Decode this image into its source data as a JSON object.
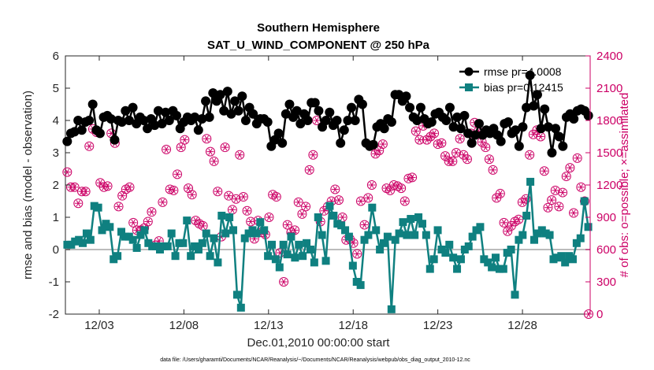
{
  "chart_data": {
    "type": "line",
    "title": "Southern Hemisphere",
    "subtitle": "SAT_U_WIND_COMPONENT @ 250 hPa",
    "xlabel": "Dec.01,2010 00:00:00 start",
    "ylabel_left": "rmse and bias (model - observation)",
    "ylabel_right": "# of obs: o=possible; ×=assimilated",
    "footer": "data file: /Users/gharamti/Documents/NCAR/Reanalysis/~/Documents/NCAR/Reanalysis/webpub/obs_diag_output_2010-12.nc",
    "x_range": [
      1,
      32
    ],
    "x_ticks": [
      3,
      8,
      13,
      18,
      23,
      28
    ],
    "x_tick_labels": [
      "12/03",
      "12/08",
      "12/13",
      "12/18",
      "12/23",
      "12/28"
    ],
    "y_left_range": [
      -2,
      6
    ],
    "y_left_ticks": [
      "-2",
      "-1",
      "0",
      "1",
      "2",
      "3",
      "4",
      "5",
      "6"
    ],
    "y_right_range": [
      0,
      2400
    ],
    "y_right_ticks": [
      "0",
      "300",
      "600",
      "900",
      "1200",
      "1500",
      "1800",
      "2100",
      "2400"
    ],
    "colors": {
      "rmse": "#000000",
      "bias": "#0f8080",
      "obs": "#cc0066",
      "zero_line": "#bbbbbb",
      "right_axis": "#cc0066"
    },
    "series": [
      {
        "name": "rmse",
        "legend": "rmse pr=4.0008",
        "axis": "left",
        "values": [
          3.35,
          3.6,
          3.65,
          4.0,
          3.7,
          3.95,
          4.0,
          4.5,
          3.7,
          3.6,
          4.1,
          4.15,
          4.05,
          3.4,
          4.0,
          3.95,
          4.3,
          4.0,
          4.4,
          3.9,
          4.1,
          4.0,
          3.75,
          4.05,
          3.85,
          4.3,
          3.9,
          4.25,
          4.0,
          4.3,
          4.15,
          3.75,
          3.95,
          4.1,
          4.0,
          4.1,
          3.7,
          4.05,
          4.6,
          4.1,
          4.85,
          4.6,
          4.8,
          4.3,
          4.9,
          4.2,
          4.6,
          4.3,
          4.75,
          4.0,
          4.4,
          4.2,
          3.9,
          4.05,
          4.05,
          3.95,
          3.2,
          3.4,
          3.6,
          3.3,
          4.2,
          4.5,
          4.1,
          4.3,
          3.9,
          4.2,
          4.0,
          4.55,
          4.55,
          4.3,
          3.8,
          4.0,
          4.25,
          3.85,
          4.0,
          3.3,
          3.7,
          4.0,
          4.4,
          4.0,
          4.65,
          4.5,
          3.3,
          3.2,
          3.25,
          3.8,
          3.9,
          3.75,
          4.05,
          3.95,
          4.8,
          4.8,
          4.6,
          4.75,
          4.4,
          4.1,
          4.0,
          4.4,
          4.05,
          3.9,
          3.95,
          4.2,
          4.25,
          4.1,
          4.0,
          4.4,
          3.8,
          4.1,
          3.75,
          4.15,
          3.6,
          3.3,
          3.55,
          3.9,
          3.55,
          3.7,
          3.6,
          3.75,
          3.55,
          3.35,
          3.9,
          3.95,
          3.6,
          3.7,
          3.2,
          3.8,
          4.4,
          5.4,
          4.45,
          4.8,
          3.75,
          4.35,
          3.8,
          3.0,
          3.75,
          3.5,
          3.2,
          4.1,
          4.2,
          4.05,
          4.3,
          4.35,
          4.3,
          4.15
        ]
      },
      {
        "name": "bias",
        "legend": "bias pr=0.12415",
        "axis": "left",
        "values": [
          0.15,
          0.15,
          0.25,
          0.3,
          0.2,
          0.5,
          0.3,
          1.35,
          1.3,
          0.6,
          0.8,
          0.7,
          -0.3,
          -0.2,
          0.55,
          0.4,
          0.4,
          0.3,
          0.05,
          0.45,
          0.6,
          0.2,
          0.1,
          0.1,
          0.0,
          0.1,
          0.1,
          0.5,
          -0.2,
          0.2,
          0.2,
          0.9,
          -0.2,
          0.1,
          0.0,
          0.2,
          0.5,
          -0.2,
          0.35,
          -0.4,
          1.05,
          0.5,
          1.0,
          0.6,
          -1.4,
          -1.8,
          0.35,
          0.5,
          0.6,
          0.5,
          0.85,
          0.6,
          -0.2,
          0.15,
          -0.3,
          -0.55,
          0.15,
          -0.15,
          0.4,
          -0.25,
          0.15,
          -0.2,
          0.2,
          0.0,
          -0.4,
          1.0,
          0.45,
          -0.35,
          1.35,
          1.05,
          0.8,
          0.75,
          0.6,
          0.4,
          -0.5,
          -1.0,
          -1.1,
          0.3,
          0.45,
          1.3,
          0.6,
          0.0,
          0.2,
          0.4,
          -1.85,
          0.3,
          0.5,
          0.85,
          0.45,
          0.95,
          0.45,
          1.0,
          0.8,
          0.45,
          -0.6,
          -0.3,
          0.6,
          0.0,
          -0.1,
          0.15,
          -0.25,
          -0.6,
          -0.3,
          0.0,
          0.1,
          0.4,
          0.6,
          0.7,
          -0.3,
          -0.4,
          -0.55,
          -0.25,
          -0.6,
          -0.6,
          -0.1,
          0.0,
          -1.4,
          0.3,
          0.45,
          1.05,
          2.1,
          0.3,
          0.5,
          0.6,
          0.5,
          0.45,
          -0.3,
          -0.25,
          -0.2,
          -0.4,
          -0.2,
          -0.3,
          0.2,
          0.35,
          1.5,
          0.7
        ]
      },
      {
        "name": "obs_possible",
        "legend": "",
        "axis": "right",
        "values": [
          1320,
          1180,
          1180,
          1030,
          1140,
          1140,
          1560,
          1720,
          1690,
          1220,
          1180,
          1190,
          1680,
          1590,
          1000,
          1100,
          1160,
          1180,
          850,
          780,
          780,
          800,
          860,
          950,
          640,
          680,
          1040,
          1530,
          1160,
          1150,
          1300,
          1550,
          1620,
          1170,
          1110,
          870,
          840,
          820,
          1630,
          1510,
          1420,
          1140,
          720,
          1550,
          1100,
          970,
          1070,
          1480,
          1090,
          960,
          860,
          700,
          870,
          760,
          740,
          900,
          1110,
          1090,
          570,
          300,
          830,
          760,
          780,
          1040,
          930,
          1000,
          1340,
          1480,
          1800,
          860,
          960,
          1000,
          1050,
          1160,
          1060,
          900,
          690,
          700,
          660,
          560,
          1050,
          830,
          1080,
          1200,
          1490,
          1520,
          1580,
          1170,
          1150,
          1200,
          1190,
          1170,
          1050,
          1260,
          1270,
          1700,
          1620,
          1750,
          1620,
          1650,
          1680,
          1580,
          1590,
          1470,
          1420,
          1420,
          1500,
          1630,
          1480,
          1440,
          1680,
          1780,
          1700,
          1600,
          1550,
          1440,
          1340,
          1080,
          1120,
          850,
          770,
          820,
          860,
          880,
          1040,
          1070,
          1480,
          1670,
          1710,
          1650,
          1330,
          990,
          1060,
          1150,
          1000,
          1130,
          1280,
          1360,
          940,
          1450,
          1180,
          1050,
          0
        ]
      }
    ],
    "legend": {
      "location": "top-right"
    }
  }
}
